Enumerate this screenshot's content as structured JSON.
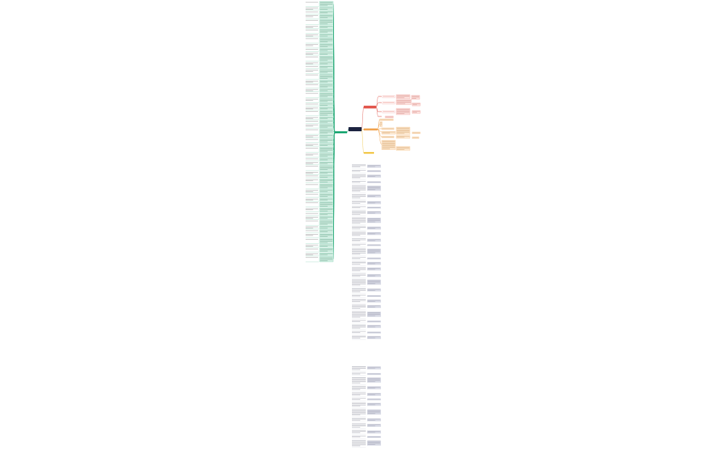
{
  "colors": {
    "background": "#ffffff",
    "root": "#1c2340",
    "green": "#1ba672",
    "green_fill": "#d8f2e7",
    "red": "#e2584f",
    "red_fill": "#fde3e0",
    "orange": "#f0a04a",
    "orange_fill": "#fde9d2",
    "yellow": "#f2c84b",
    "gray_fill": "#d9dbe6",
    "gray_line": "#b9bccb"
  },
  "root": {
    "label": ""
  },
  "branches": {
    "left": {
      "label": ""
    },
    "right_top": {
      "label": ""
    },
    "right_middle": {
      "label": ""
    },
    "right_bottom": {
      "label": ""
    }
  }
}
